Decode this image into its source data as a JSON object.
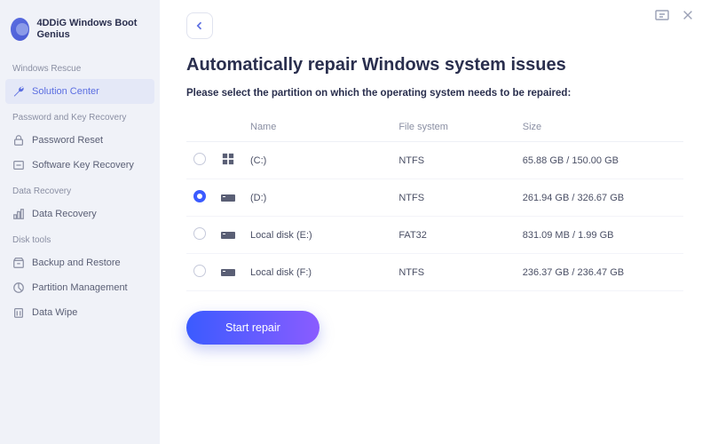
{
  "app": {
    "title": "4DDiG Windows\nBoot Genius"
  },
  "sidebar": {
    "sections": [
      {
        "label": "Windows Rescue",
        "items": [
          {
            "label": "Solution Center",
            "icon": "wrench",
            "active": true
          }
        ]
      },
      {
        "label": "Password and Key Recovery",
        "items": [
          {
            "label": "Password Reset",
            "icon": "lock"
          },
          {
            "label": "Software Key Recovery",
            "icon": "key"
          }
        ]
      },
      {
        "label": "Data Recovery",
        "items": [
          {
            "label": "Data Recovery",
            "icon": "chart"
          }
        ]
      },
      {
        "label": "Disk tools",
        "items": [
          {
            "label": "Backup and Restore",
            "icon": "archive"
          },
          {
            "label": "Partition Management",
            "icon": "partition"
          },
          {
            "label": "Data Wipe",
            "icon": "wipe"
          }
        ]
      }
    ]
  },
  "main": {
    "title": "Automatically repair Windows system issues",
    "subtitle": "Please select the partition on which the operating system needs to be repaired:",
    "columns": {
      "name": "Name",
      "fs": "File system",
      "size": "Size"
    },
    "partitions": [
      {
        "name": "(C:)",
        "fs": "NTFS",
        "size": "65.88 GB / 150.00 GB",
        "icon": "windows",
        "selected": false
      },
      {
        "name": "(D:)",
        "fs": "NTFS",
        "size": "261.94 GB / 326.67 GB",
        "icon": "disk",
        "selected": true
      },
      {
        "name": "Local disk (E:)",
        "fs": "FAT32",
        "size": "831.09 MB / 1.99 GB",
        "icon": "disk",
        "selected": false
      },
      {
        "name": "Local disk (F:)",
        "fs": "NTFS",
        "size": "236.37 GB / 236.47 GB",
        "icon": "disk",
        "selected": false
      }
    ],
    "start_button": "Start repair"
  },
  "colors": {
    "accent": "#5b6ee1",
    "sidebar_bg": "#f0f2f8",
    "active_bg": "#e4e8f7",
    "text_dark": "#2a2f4e",
    "text_muted": "#8a8fa3",
    "radio_selected": "#3b5bff",
    "gradient_start": "#3b5bff",
    "gradient_end": "#8a5cff"
  }
}
